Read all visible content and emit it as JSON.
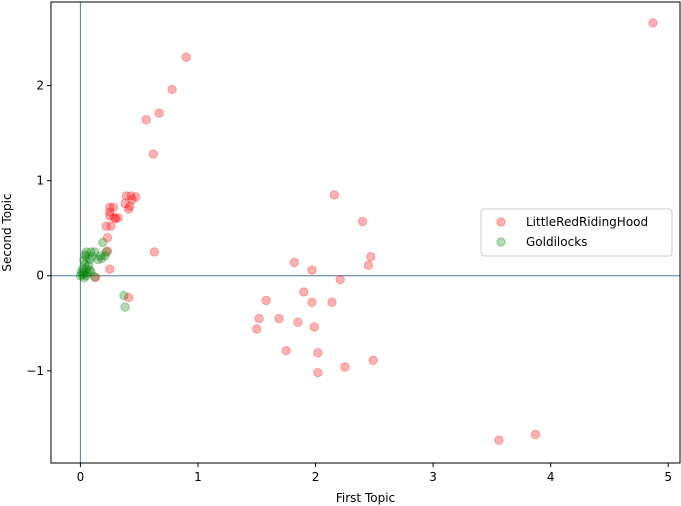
{
  "chart_data": {
    "type": "scatter",
    "title": "",
    "xlabel": "First Topic",
    "ylabel": "Second Topic",
    "xlim": [
      -0.25,
      5.1
    ],
    "ylim": [
      -1.97,
      2.88
    ],
    "x_ticks": [
      0,
      1,
      2,
      3,
      4,
      5
    ],
    "y_ticks": [
      -1,
      0,
      1,
      2
    ],
    "x_tick_labels": [
      "0",
      "1",
      "2",
      "3",
      "4",
      "5"
    ],
    "y_tick_labels": [
      "−1",
      "0",
      "1",
      "2"
    ],
    "reference_lines": {
      "x": 0,
      "y": 0,
      "color": "#4c78a8"
    },
    "grid": false,
    "legend_position": "center-right",
    "series": [
      {
        "name": "LittleRedRidingHood",
        "color": "#ff0000",
        "opacity": 0.3,
        "points": [
          [
            4.87,
            2.66
          ],
          [
            0.9,
            2.3
          ],
          [
            0.78,
            1.96
          ],
          [
            0.67,
            1.71
          ],
          [
            0.56,
            1.64
          ],
          [
            0.62,
            1.28
          ],
          [
            0.39,
            0.84
          ],
          [
            0.43,
            0.84
          ],
          [
            0.47,
            0.83
          ],
          [
            0.44,
            0.8
          ],
          [
            0.38,
            0.76
          ],
          [
            0.42,
            0.73
          ],
          [
            0.41,
            0.7
          ],
          [
            0.25,
            0.72
          ],
          [
            0.28,
            0.72
          ],
          [
            0.25,
            0.67
          ],
          [
            0.25,
            0.63
          ],
          [
            0.29,
            0.61
          ],
          [
            0.32,
            0.61
          ],
          [
            0.3,
            0.6
          ],
          [
            0.22,
            0.52
          ],
          [
            0.26,
            0.52
          ],
          [
            0.23,
            0.4
          ],
          [
            0.63,
            0.25
          ],
          [
            0.23,
            0.26
          ],
          [
            0.25,
            0.07
          ],
          [
            0.13,
            -0.02
          ],
          [
            0.41,
            -0.23
          ],
          [
            2.16,
            0.85
          ],
          [
            2.4,
            0.57
          ],
          [
            2.47,
            0.2
          ],
          [
            2.45,
            0.11
          ],
          [
            1.82,
            0.14
          ],
          [
            1.97,
            0.06
          ],
          [
            2.21,
            -0.04
          ],
          [
            1.9,
            -0.17
          ],
          [
            1.58,
            -0.26
          ],
          [
            1.97,
            -0.28
          ],
          [
            2.14,
            -0.28
          ],
          [
            1.52,
            -0.45
          ],
          [
            1.69,
            -0.45
          ],
          [
            1.85,
            -0.49
          ],
          [
            1.99,
            -0.54
          ],
          [
            1.5,
            -0.56
          ],
          [
            1.75,
            -0.79
          ],
          [
            2.02,
            -0.81
          ],
          [
            2.49,
            -0.89
          ],
          [
            2.25,
            -0.96
          ],
          [
            2.02,
            -1.02
          ],
          [
            3.87,
            -1.67
          ],
          [
            3.56,
            -1.73
          ]
        ]
      },
      {
        "name": "Goldilocks",
        "color": "#008000",
        "opacity": 0.3,
        "points": [
          [
            0.05,
            0.25
          ],
          [
            0.09,
            0.25
          ],
          [
            0.12,
            0.25
          ],
          [
            0.22,
            0.25
          ],
          [
            0.04,
            0.22
          ],
          [
            0.05,
            0.2
          ],
          [
            0.1,
            0.2
          ],
          [
            0.17,
            0.21
          ],
          [
            0.21,
            0.21
          ],
          [
            0.03,
            0.16
          ],
          [
            0.08,
            0.17
          ],
          [
            0.15,
            0.17
          ],
          [
            0.04,
            0.12
          ],
          [
            0.07,
            0.11
          ],
          [
            0.18,
            0.18
          ],
          [
            0.02,
            0.07
          ],
          [
            0.05,
            0.07
          ],
          [
            0.08,
            0.06
          ],
          [
            0.01,
            0.04
          ],
          [
            0.03,
            0.03
          ],
          [
            0.06,
            0.03
          ],
          [
            0.09,
            0.04
          ],
          [
            0.0,
            0.0
          ],
          [
            0.02,
            0.01
          ],
          [
            0.05,
            0.0
          ],
          [
            0.12,
            -0.01
          ],
          [
            0.03,
            -0.02
          ],
          [
            0.19,
            0.35
          ],
          [
            0.37,
            -0.21
          ],
          [
            0.38,
            -0.33
          ]
        ]
      }
    ]
  }
}
